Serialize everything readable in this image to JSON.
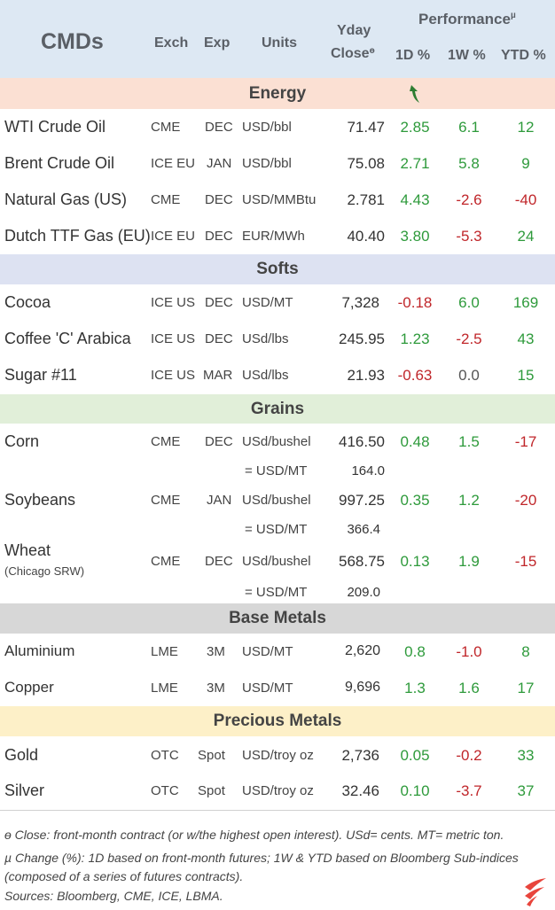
{
  "header": {
    "title": "CMDs",
    "exch": "Exch",
    "exp": "Exp",
    "units": "Units",
    "yday": "Yday",
    "close": "Close",
    "close_sup": "ɵ",
    "performance": "Performance",
    "performance_sup": "µ",
    "d1": "1D %",
    "w1": "1W %",
    "ytd": "YTD %"
  },
  "sections": {
    "energy": "Energy",
    "softs": "Softs",
    "grains": "Grains",
    "base": "Base Metals",
    "precious": "Precious Metals"
  },
  "rows": {
    "wti": {
      "name": "WTI Crude Oil",
      "exch": "CME",
      "exp": "DEC",
      "units": "USD/bbl",
      "close": "71.47",
      "d1": "2.85",
      "w1": "6.1",
      "ytd": "12"
    },
    "brent": {
      "name": "Brent Crude Oil",
      "exch": "ICE EU",
      "exp": "JAN",
      "units": "USD/bbl",
      "close": "75.08",
      "d1": "2.71",
      "w1": "5.8",
      "ytd": "9"
    },
    "natgas": {
      "name": "Natural Gas (US)",
      "exch": "CME",
      "exp": "DEC",
      "units": "USD/MMBtu",
      "close": "2.781",
      "d1": "4.43",
      "w1": "-2.6",
      "ytd": "-40"
    },
    "ttf": {
      "name": "Dutch TTF Gas (EU)",
      "exch": "ICE EU",
      "exp": "DEC",
      "units": "EUR/MWh",
      "close": "40.40",
      "d1": "3.80",
      "w1": "-5.3",
      "ytd": "24"
    },
    "cocoa": {
      "name": "Cocoa",
      "exch": "ICE US",
      "exp": "DEC",
      "units": "USD/MT",
      "close": "7,328",
      "d1": "-0.18",
      "w1": "6.0",
      "ytd": "169"
    },
    "coffee": {
      "name": "Coffee 'C' Arabica",
      "exch": "ICE US",
      "exp": "DEC",
      "units": "USd/lbs",
      "close": "245.95",
      "d1": "1.23",
      "w1": "-2.5",
      "ytd": "43"
    },
    "sugar": {
      "name": "Sugar #11",
      "exch": "ICE US",
      "exp": "MAR",
      "units": "USd/lbs",
      "close": "21.93",
      "d1": "-0.63",
      "w1": "0.0",
      "ytd": "15"
    },
    "corn": {
      "name": "Corn",
      "exch": "CME",
      "exp": "DEC",
      "units": "USd/bushel",
      "close": "416.50",
      "d1": "0.48",
      "w1": "1.5",
      "ytd": "-17",
      "conv_label": "= USD/MT",
      "conv_value": "164.0"
    },
    "soy": {
      "name": "Soybeans",
      "exch": "CME",
      "exp": "JAN",
      "units": "USd/bushel",
      "close": "997.25",
      "d1": "0.35",
      "w1": "1.2",
      "ytd": "-20",
      "conv_label": "= USD/MT",
      "conv_value": "366.4"
    },
    "wheat": {
      "name": "Wheat",
      "subname": "(Chicago SRW)",
      "exch": "CME",
      "exp": "DEC",
      "units": "USd/bushel",
      "close": "568.75",
      "d1": "0.13",
      "w1": "1.9",
      "ytd": "-15",
      "conv_label": "= USD/MT",
      "conv_value": "209.0"
    },
    "alu": {
      "name": "Aluminium",
      "exch": "LME",
      "exp": "3M",
      "units": "USD/MT",
      "close": "2,620",
      "d1": "0.8",
      "w1": "-1.0",
      "ytd": "8"
    },
    "copper": {
      "name": "Copper",
      "exch": "LME",
      "exp": "3M",
      "units": "USD/MT",
      "close": "9,696",
      "d1": "1.3",
      "w1": "1.6",
      "ytd": "17"
    },
    "gold": {
      "name": "Gold",
      "exch": "OTC",
      "exp": "Spot",
      "units": "USD/troy oz",
      "close": "2,736",
      "d1": "0.05",
      "w1": "-0.2",
      "ytd": "33"
    },
    "silver": {
      "name": "Silver",
      "exch": "OTC",
      "exp": "Spot",
      "units": "USD/troy oz",
      "close": "32.46",
      "d1": "0.10",
      "w1": "-3.7",
      "ytd": "37"
    }
  },
  "footnotes": {
    "line1": "ɵ Close: front-month contract (or w/the highest open interest). USd= cents. MT= metric ton.",
    "line2": "µ Change (%): 1D based on front-month futures; 1W & YTD based on Bloomberg Sub-indices",
    "line3": "(composed of a series of futures contracts).",
    "line4": "Sources: Bloomberg, CME, ICE, LBMA."
  },
  "colors": {
    "header_bg": "#dde8f3",
    "energy_bg": "#fbe0d3",
    "softs_bg": "#dde2f2",
    "grains_bg": "#e1efd9",
    "base_bg": "#d7d7d7",
    "precious_bg": "#fdf0c8",
    "positive": "#2e9a3b",
    "negative": "#c0262a",
    "logo": "#e8453c"
  },
  "icons": {
    "arrow": "curved-up-arrow-icon",
    "logo": "brand-logo-icon"
  }
}
